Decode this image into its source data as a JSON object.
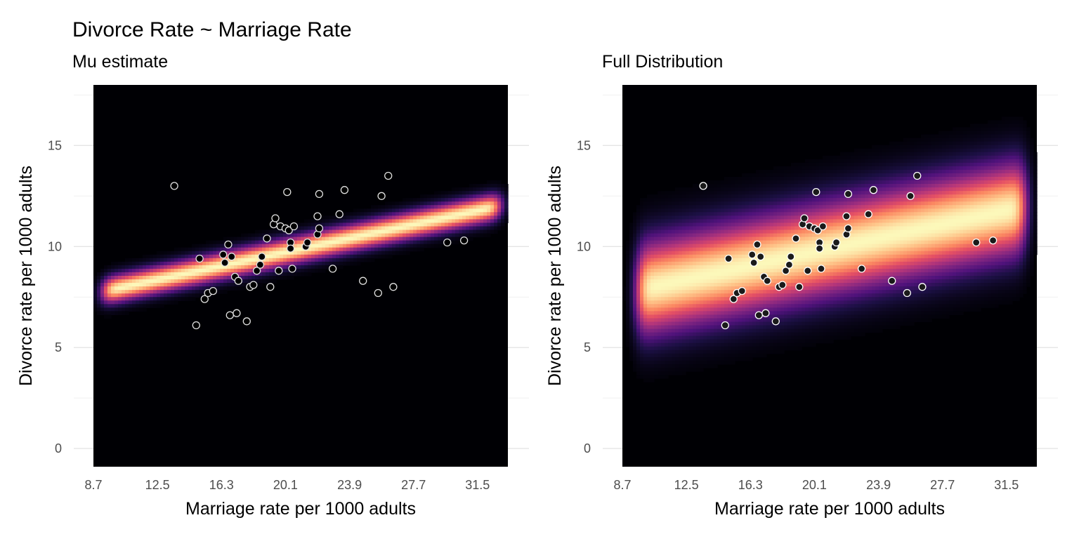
{
  "title": "Divorce Rate ~ Marriage Rate",
  "chart_data": [
    {
      "type": "heatmap",
      "subtitle": "Mu estimate",
      "xlabel": "Marriage rate per 1000 adults",
      "ylabel": "Divorce rate per 1000 adults",
      "x_ticks": [
        "8.7",
        "12.5",
        "16.3",
        "20.1",
        "23.9",
        "27.7",
        "31.5"
      ],
      "y_ticks": [
        "0",
        "5",
        "10",
        "15"
      ],
      "xlim": [
        8.7,
        33.3
      ],
      "ylim": [
        -0.9,
        18
      ],
      "density": {
        "intercept": 6.1,
        "slope": 0.18,
        "sd_y": 0.45,
        "x_from": 9.3,
        "x_to": 32.8
      },
      "color_scale": "magma",
      "points": {
        "fill": "#000000",
        "stroke": "#e0e0e0"
      }
    },
    {
      "type": "heatmap",
      "subtitle": "Full Distribution",
      "xlabel": "Marriage rate per 1000 adults",
      "ylabel": "Divorce rate per 1000 adults",
      "x_ticks": [
        "8.7",
        "12.5",
        "16.3",
        "20.1",
        "23.9",
        "27.7",
        "31.5"
      ],
      "y_ticks": [
        "0",
        "5",
        "10",
        "15"
      ],
      "xlim": [
        8.7,
        33.3
      ],
      "ylim": [
        -0.9,
        18
      ],
      "density": {
        "intercept": 6.1,
        "slope": 0.18,
        "sd_y": 1.55,
        "x_from": 9.6,
        "x_to": 32.6
      },
      "color_scale": "magma",
      "points": {
        "fill": "#1a1a1a",
        "stroke": "#ffffff"
      }
    }
  ],
  "points": [
    {
      "x": 13.5,
      "y": 13.0
    },
    {
      "x": 14.8,
      "y": 6.1
    },
    {
      "x": 15.0,
      "y": 9.4
    },
    {
      "x": 15.3,
      "y": 7.4
    },
    {
      "x": 15.5,
      "y": 7.7
    },
    {
      "x": 15.8,
      "y": 7.8
    },
    {
      "x": 16.4,
      "y": 9.6
    },
    {
      "x": 16.5,
      "y": 9.2
    },
    {
      "x": 16.7,
      "y": 10.1
    },
    {
      "x": 16.8,
      "y": 6.6
    },
    {
      "x": 16.9,
      "y": 9.5
    },
    {
      "x": 17.1,
      "y": 8.5
    },
    {
      "x": 17.2,
      "y": 6.7
    },
    {
      "x": 17.3,
      "y": 8.3
    },
    {
      "x": 17.8,
      "y": 6.3
    },
    {
      "x": 18.0,
      "y": 8.0
    },
    {
      "x": 18.2,
      "y": 8.1
    },
    {
      "x": 18.4,
      "y": 8.8
    },
    {
      "x": 18.6,
      "y": 9.1
    },
    {
      "x": 18.7,
      "y": 9.5
    },
    {
      "x": 19.0,
      "y": 10.4
    },
    {
      "x": 19.2,
      "y": 8.0
    },
    {
      "x": 19.4,
      "y": 11.1
    },
    {
      "x": 19.5,
      "y": 11.4
    },
    {
      "x": 19.7,
      "y": 8.8
    },
    {
      "x": 19.8,
      "y": 11.0
    },
    {
      "x": 20.1,
      "y": 10.9
    },
    {
      "x": 20.2,
      "y": 12.7
    },
    {
      "x": 20.3,
      "y": 10.8
    },
    {
      "x": 20.4,
      "y": 10.2
    },
    {
      "x": 20.4,
      "y": 9.9
    },
    {
      "x": 20.5,
      "y": 8.9
    },
    {
      "x": 20.6,
      "y": 11.0
    },
    {
      "x": 21.3,
      "y": 10.0
    },
    {
      "x": 21.4,
      "y": 10.2
    },
    {
      "x": 22.0,
      "y": 11.5
    },
    {
      "x": 22.0,
      "y": 10.6
    },
    {
      "x": 22.1,
      "y": 10.9
    },
    {
      "x": 22.1,
      "y": 12.6
    },
    {
      "x": 22.9,
      "y": 8.9
    },
    {
      "x": 23.3,
      "y": 11.6
    },
    {
      "x": 23.6,
      "y": 12.8
    },
    {
      "x": 24.7,
      "y": 8.3
    },
    {
      "x": 25.6,
      "y": 7.7
    },
    {
      "x": 25.8,
      "y": 12.5
    },
    {
      "x": 26.2,
      "y": 13.5
    },
    {
      "x": 26.5,
      "y": 8.0
    },
    {
      "x": 29.7,
      "y": 10.2
    },
    {
      "x": 30.7,
      "y": 10.3
    }
  ]
}
